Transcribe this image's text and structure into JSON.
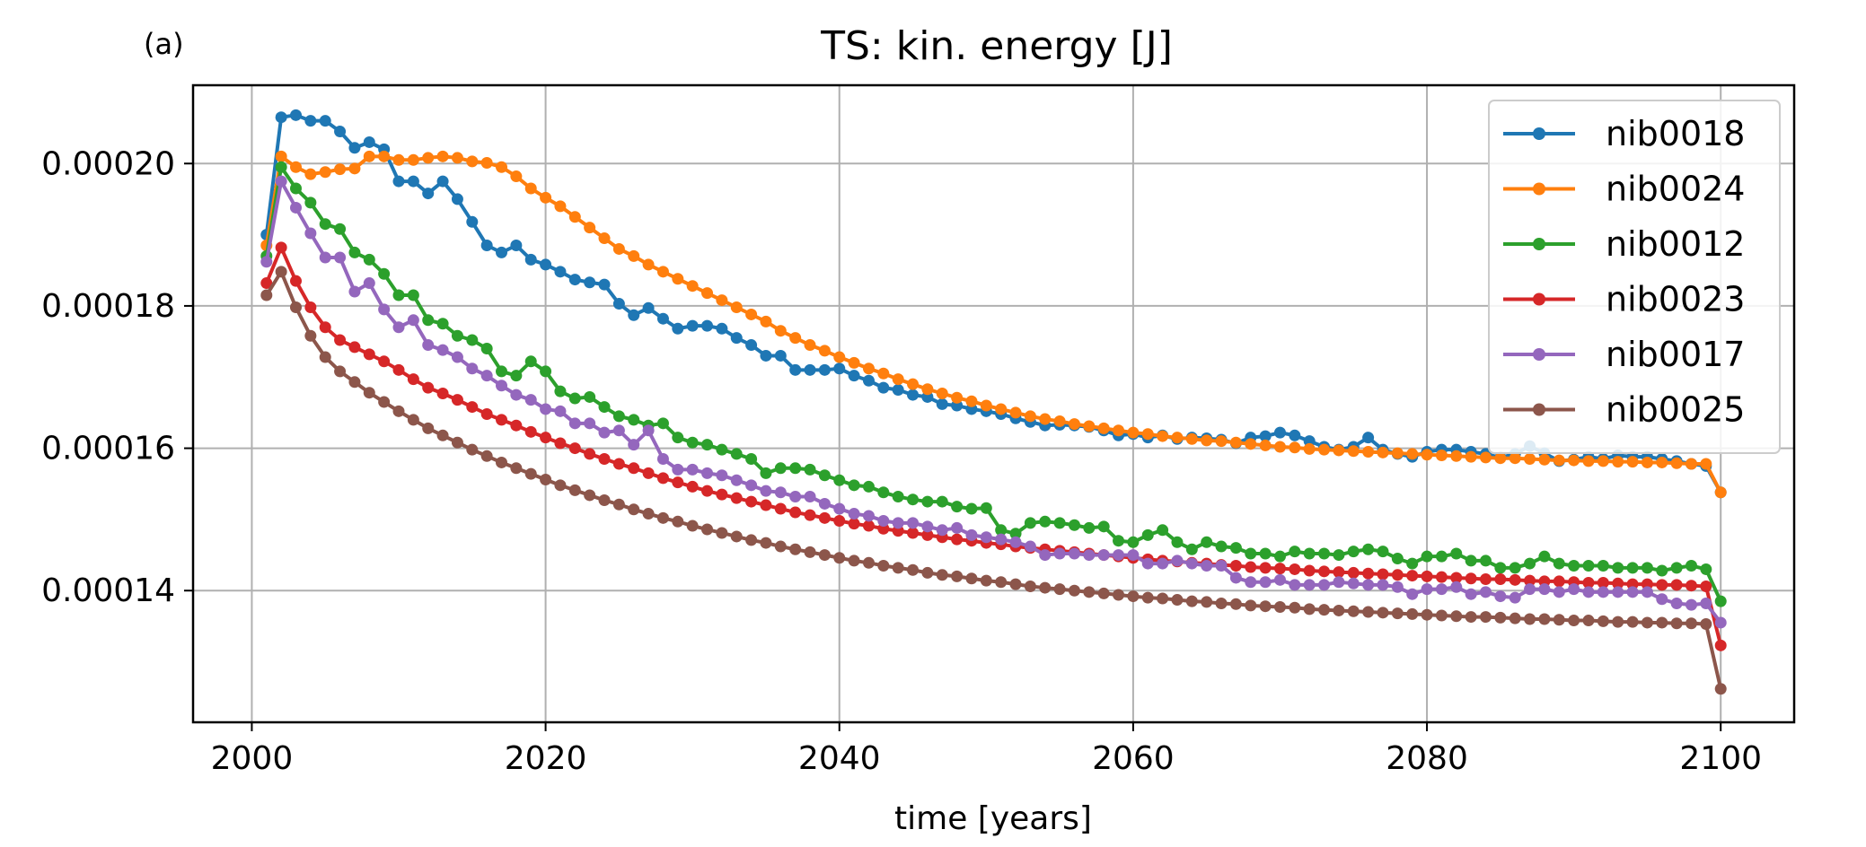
{
  "panel_label": "(a)",
  "chart_data": {
    "type": "line",
    "title": "TS: kin. energy [J]",
    "xlabel": "time [years]",
    "ylabel": "",
    "xlim": [
      1996,
      2105
    ],
    "ylim": [
      0.0001215,
      0.000211
    ],
    "x_ticks": [
      2000,
      2020,
      2040,
      2060,
      2080,
      2100
    ],
    "x_tick_labels": [
      "2000",
      "2020",
      "2040",
      "2060",
      "2080",
      "2100"
    ],
    "y_ticks": [
      0.00014,
      0.00016,
      0.00018,
      0.0002
    ],
    "y_tick_labels": [
      "0.00014",
      "0.00016",
      "0.00018",
      "0.00020"
    ],
    "grid": true,
    "legend_position": "top-right",
    "x_start": 2001,
    "x_end": 2100,
    "series": [
      {
        "name": "nib0018",
        "color": "#1f77b4",
        "values": [
          0.00019,
          0.0002065,
          0.0002068,
          0.000206,
          0.000206,
          0.0002045,
          0.0002022,
          0.000203,
          0.000202,
          0.0001975,
          0.0001975,
          0.0001958,
          0.0001975,
          0.000195,
          0.0001918,
          0.0001885,
          0.0001875,
          0.0001885,
          0.0001865,
          0.0001858,
          0.0001848,
          0.0001837,
          0.0001833,
          0.000183,
          0.0001803,
          0.0001787,
          0.0001797,
          0.0001782,
          0.0001768,
          0.0001772,
          0.0001772,
          0.0001768,
          0.0001755,
          0.0001745,
          0.000173,
          0.000173,
          0.000171,
          0.000171,
          0.000171,
          0.0001712,
          0.0001702,
          0.0001695,
          0.0001685,
          0.0001682,
          0.0001675,
          0.0001672,
          0.0001662,
          0.000166,
          0.0001655,
          0.0001652,
          0.0001648,
          0.0001642,
          0.0001637,
          0.0001632,
          0.0001633,
          0.0001632,
          0.000163,
          0.0001625,
          0.0001618,
          0.000162,
          0.0001615,
          0.0001618,
          0.0001613,
          0.0001615,
          0.0001614,
          0.0001612,
          0.0001607,
          0.0001615,
          0.0001617,
          0.0001622,
          0.0001618,
          0.000161,
          0.0001602,
          0.0001598,
          0.0001602,
          0.0001615,
          0.0001598,
          0.0001592,
          0.0001588,
          0.0001595,
          0.0001598,
          0.0001598,
          0.0001595,
          0.0001592,
          0.0001587,
          0.0001592,
          0.0001603,
          0.0001593,
          0.0001582,
          0.0001584,
          0.0001588,
          0.0001585,
          0.000159,
          0.0001588,
          0.0001588,
          0.0001585,
          0.0001582,
          0.0001578,
          0.0001575,
          0.0001538
        ]
      },
      {
        "name": "nib0024",
        "color": "#ff7f0e",
        "values": [
          0.0001885,
          0.000201,
          0.0001995,
          0.0001985,
          0.0001988,
          0.0001992,
          0.0001993,
          0.000201,
          0.000201,
          0.0002005,
          0.0002005,
          0.0002008,
          0.000201,
          0.0002008,
          0.0002003,
          0.0002001,
          0.0001995,
          0.0001982,
          0.0001965,
          0.0001952,
          0.000194,
          0.0001925,
          0.000191,
          0.0001895,
          0.000188,
          0.000187,
          0.0001858,
          0.0001848,
          0.0001838,
          0.0001828,
          0.0001818,
          0.0001808,
          0.0001798,
          0.0001788,
          0.0001778,
          0.0001765,
          0.0001755,
          0.0001745,
          0.0001737,
          0.0001728,
          0.000172,
          0.0001712,
          0.0001705,
          0.0001697,
          0.000169,
          0.0001683,
          0.0001677,
          0.0001671,
          0.0001666,
          0.000166,
          0.0001655,
          0.000165,
          0.0001645,
          0.0001641,
          0.0001638,
          0.0001634,
          0.0001631,
          0.0001628,
          0.0001625,
          0.0001622,
          0.000162,
          0.0001617,
          0.0001615,
          0.0001613,
          0.0001611,
          0.000161,
          0.0001608,
          0.0001606,
          0.0001604,
          0.0001602,
          0.0001601,
          0.0001599,
          0.0001598,
          0.0001597,
          0.0001596,
          0.0001595,
          0.0001594,
          0.0001593,
          0.0001592,
          0.0001591,
          0.000159,
          0.0001589,
          0.0001588,
          0.0001587,
          0.0001586,
          0.0001586,
          0.0001585,
          0.0001584,
          0.0001583,
          0.0001583,
          0.0001582,
          0.0001582,
          0.0001581,
          0.0001581,
          0.000158,
          0.000158,
          0.0001579,
          0.0001578,
          0.0001578,
          0.0001538
        ]
      },
      {
        "name": "nib0012",
        "color": "#2ca02c",
        "values": [
          0.000187,
          0.0001995,
          0.0001965,
          0.0001945,
          0.0001915,
          0.0001908,
          0.0001875,
          0.0001865,
          0.0001845,
          0.0001815,
          0.0001815,
          0.000178,
          0.0001775,
          0.0001758,
          0.0001752,
          0.000174,
          0.0001708,
          0.0001702,
          0.0001722,
          0.0001708,
          0.000168,
          0.000167,
          0.0001672,
          0.0001658,
          0.0001645,
          0.000164,
          0.0001632,
          0.0001635,
          0.0001615,
          0.0001608,
          0.0001605,
          0.0001598,
          0.0001592,
          0.0001585,
          0.0001565,
          0.0001572,
          0.0001572,
          0.000157,
          0.0001562,
          0.0001555,
          0.0001548,
          0.0001546,
          0.0001538,
          0.0001532,
          0.0001528,
          0.0001525,
          0.0001525,
          0.0001518,
          0.0001515,
          0.0001516,
          0.0001485,
          0.000148,
          0.0001495,
          0.0001497,
          0.0001495,
          0.0001492,
          0.0001488,
          0.000149,
          0.000147,
          0.0001468,
          0.0001478,
          0.0001485,
          0.0001468,
          0.0001458,
          0.0001468,
          0.0001462,
          0.000146,
          0.0001452,
          0.0001452,
          0.0001448,
          0.0001455,
          0.0001452,
          0.0001452,
          0.000145,
          0.0001455,
          0.0001458,
          0.0001455,
          0.0001445,
          0.0001438,
          0.0001448,
          0.0001448,
          0.0001452,
          0.0001442,
          0.0001442,
          0.0001432,
          0.0001432,
          0.0001438,
          0.0001448,
          0.0001438,
          0.0001435,
          0.0001435,
          0.0001435,
          0.0001432,
          0.0001432,
          0.0001432,
          0.0001428,
          0.0001432,
          0.0001435,
          0.000143,
          0.0001385
        ]
      },
      {
        "name": "nib0023",
        "color": "#d62728",
        "values": [
          0.0001832,
          0.0001882,
          0.0001835,
          0.0001798,
          0.000177,
          0.0001752,
          0.0001742,
          0.0001732,
          0.0001722,
          0.000171,
          0.0001697,
          0.0001685,
          0.0001677,
          0.0001668,
          0.0001658,
          0.0001648,
          0.000164,
          0.0001632,
          0.0001623,
          0.0001615,
          0.0001607,
          0.00016,
          0.0001592,
          0.0001585,
          0.0001578,
          0.0001572,
          0.0001565,
          0.0001558,
          0.0001552,
          0.0001546,
          0.000154,
          0.0001535,
          0.000153,
          0.0001525,
          0.000152,
          0.0001515,
          0.000151,
          0.0001506,
          0.0001502,
          0.0001498,
          0.0001494,
          0.0001491,
          0.0001487,
          0.0001484,
          0.0001481,
          0.0001478,
          0.0001475,
          0.0001472,
          0.000147,
          0.0001467,
          0.0001465,
          0.0001462,
          0.000146,
          0.0001458,
          0.0001456,
          0.0001454,
          0.0001452,
          0.000145,
          0.0001448,
          0.0001446,
          0.0001444,
          0.0001442,
          0.0001441,
          0.0001439,
          0.0001438,
          0.0001436,
          0.0001435,
          0.0001433,
          0.0001432,
          0.0001431,
          0.000143,
          0.0001428,
          0.0001427,
          0.0001426,
          0.0001425,
          0.0001424,
          0.0001423,
          0.0001422,
          0.0001421,
          0.000142,
          0.0001419,
          0.0001418,
          0.0001417,
          0.0001416,
          0.0001416,
          0.0001415,
          0.0001414,
          0.0001413,
          0.0001413,
          0.0001412,
          0.0001411,
          0.0001411,
          0.000141,
          0.0001409,
          0.0001409,
          0.0001408,
          0.0001408,
          0.0001407,
          0.0001406,
          0.0001323
        ]
      },
      {
        "name": "nib0017",
        "color": "#9467bd",
        "values": [
          0.0001862,
          0.0001975,
          0.0001938,
          0.0001902,
          0.0001868,
          0.0001868,
          0.000182,
          0.0001832,
          0.0001795,
          0.000177,
          0.000178,
          0.0001745,
          0.0001738,
          0.0001728,
          0.0001712,
          0.0001702,
          0.0001688,
          0.0001675,
          0.0001668,
          0.0001655,
          0.0001652,
          0.0001635,
          0.0001635,
          0.0001622,
          0.0001625,
          0.0001605,
          0.0001625,
          0.0001585,
          0.000157,
          0.000157,
          0.0001565,
          0.0001562,
          0.0001555,
          0.0001548,
          0.000154,
          0.0001538,
          0.0001532,
          0.0001532,
          0.0001522,
          0.0001515,
          0.0001508,
          0.0001505,
          0.0001498,
          0.0001495,
          0.0001495,
          0.000149,
          0.0001485,
          0.0001488,
          0.0001478,
          0.0001475,
          0.0001472,
          0.0001468,
          0.0001462,
          0.000145,
          0.0001452,
          0.0001452,
          0.000145,
          0.000145,
          0.000145,
          0.000145,
          0.0001438,
          0.0001438,
          0.0001442,
          0.0001438,
          0.0001435,
          0.0001435,
          0.0001418,
          0.0001412,
          0.0001412,
          0.0001415,
          0.0001408,
          0.0001408,
          0.0001408,
          0.0001412,
          0.000141,
          0.0001408,
          0.0001408,
          0.0001405,
          0.0001395,
          0.0001402,
          0.0001402,
          0.0001405,
          0.0001395,
          0.0001398,
          0.0001392,
          0.000139,
          0.0001402,
          0.0001402,
          0.0001398,
          0.0001402,
          0.0001398,
          0.0001398,
          0.0001398,
          0.0001398,
          0.0001398,
          0.0001388,
          0.0001382,
          0.000138,
          0.0001382,
          0.0001355
        ]
      },
      {
        "name": "nib0025",
        "color": "#8c564b",
        "values": [
          0.0001815,
          0.0001848,
          0.0001798,
          0.0001758,
          0.0001728,
          0.0001708,
          0.0001693,
          0.0001678,
          0.0001665,
          0.0001652,
          0.000164,
          0.0001628,
          0.0001618,
          0.0001608,
          0.0001598,
          0.0001589,
          0.000158,
          0.0001572,
          0.0001564,
          0.0001556,
          0.0001548,
          0.0001541,
          0.0001534,
          0.0001527,
          0.0001521,
          0.0001514,
          0.0001508,
          0.0001502,
          0.0001497,
          0.0001491,
          0.0001486,
          0.0001481,
          0.0001476,
          0.0001471,
          0.0001467,
          0.0001462,
          0.0001458,
          0.0001454,
          0.000145,
          0.0001446,
          0.0001442,
          0.0001439,
          0.0001435,
          0.0001432,
          0.0001429,
          0.0001425,
          0.0001422,
          0.000142,
          0.0001417,
          0.0001414,
          0.0001412,
          0.0001409,
          0.0001406,
          0.0001404,
          0.0001402,
          0.00014,
          0.0001398,
          0.0001396,
          0.0001394,
          0.0001392,
          0.000139,
          0.0001389,
          0.0001387,
          0.0001385,
          0.0001384,
          0.0001382,
          0.0001381,
          0.0001379,
          0.0001378,
          0.0001377,
          0.0001376,
          0.0001374,
          0.0001373,
          0.0001372,
          0.0001371,
          0.000137,
          0.0001369,
          0.0001368,
          0.0001367,
          0.0001366,
          0.0001365,
          0.0001364,
          0.0001363,
          0.0001363,
          0.0001362,
          0.0001361,
          0.000136,
          0.000136,
          0.0001359,
          0.0001358,
          0.0001358,
          0.0001357,
          0.0001356,
          0.0001356,
          0.0001355,
          0.0001355,
          0.0001354,
          0.0001354,
          0.0001353,
          0.0001262
        ]
      }
    ]
  }
}
